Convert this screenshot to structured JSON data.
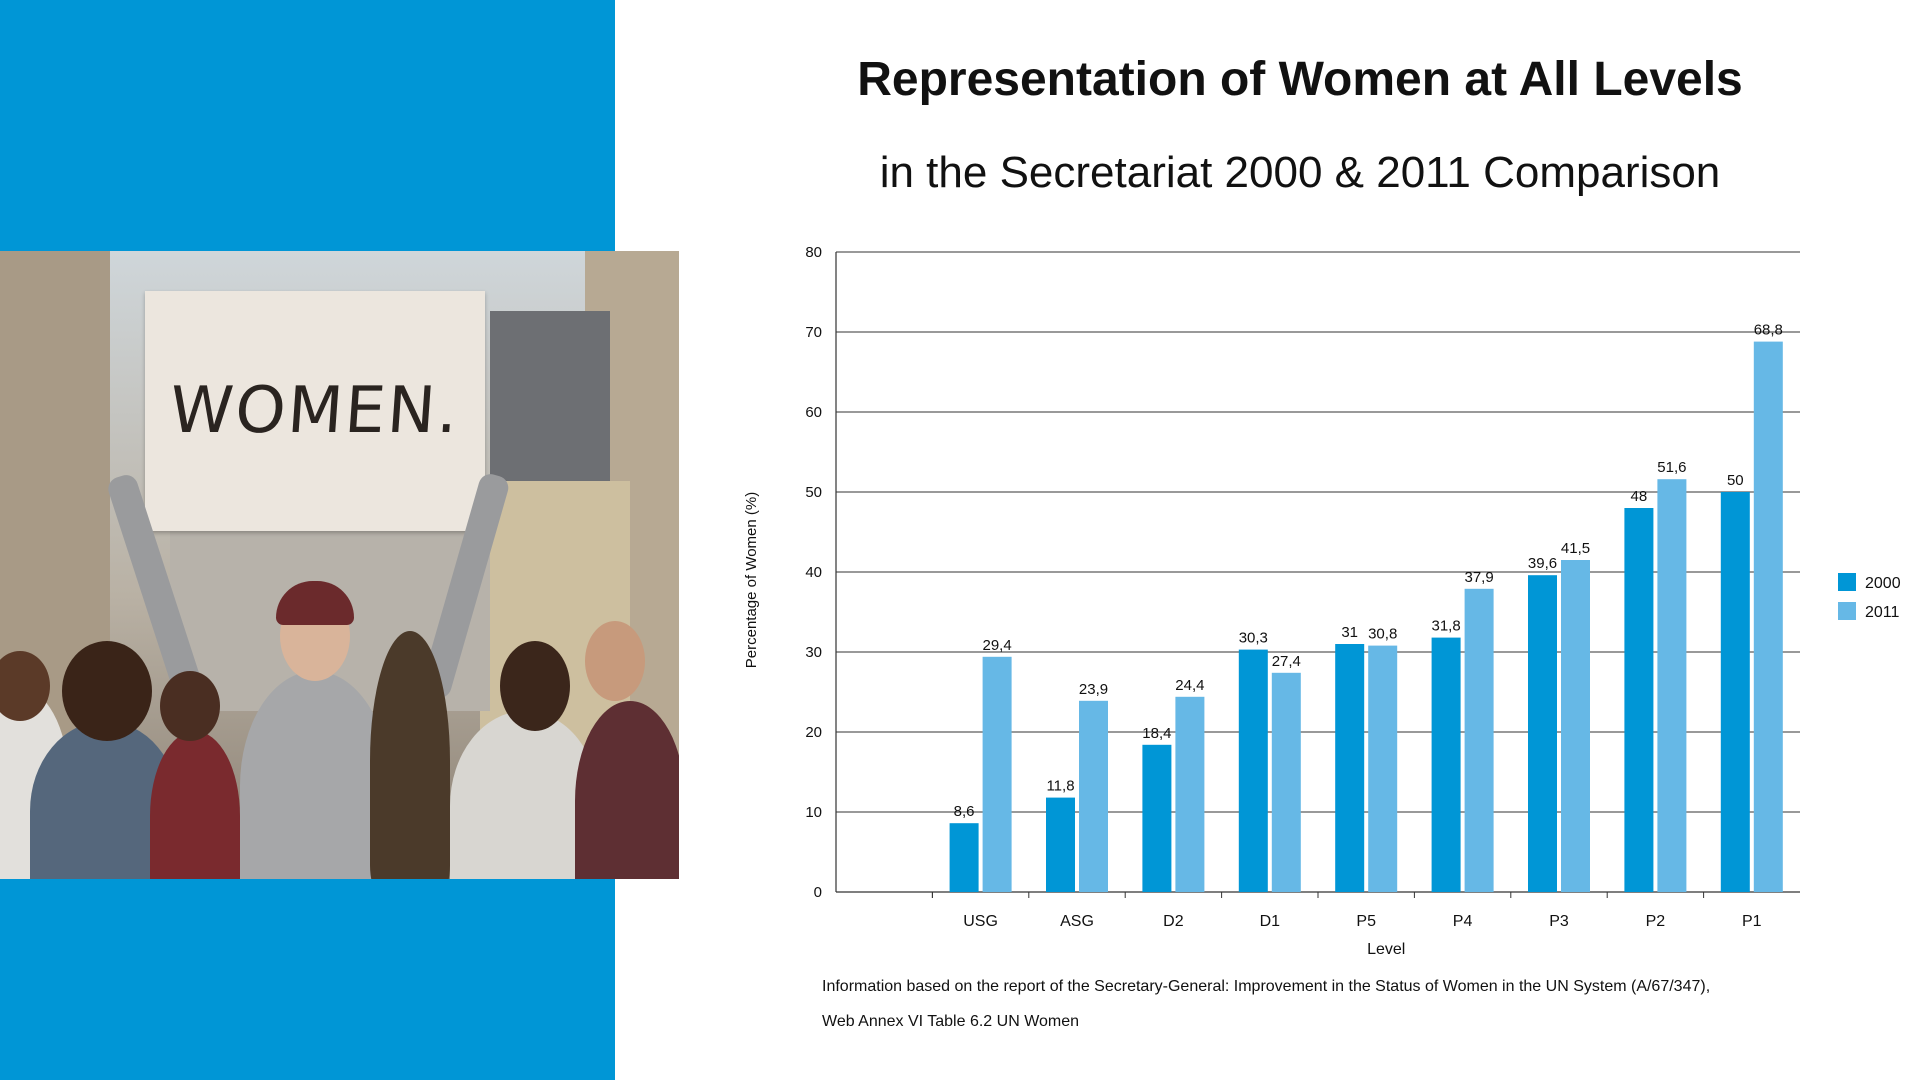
{
  "title": "Representation of Women at All Levels",
  "subtitle": "in the Secretariat 2000 & 2011 Comparison",
  "photo": {
    "sign_text": "WOMEN."
  },
  "colors": {
    "panel": "#0096d6",
    "series_2000": "#0096d6",
    "series_2011": "#66b8e6"
  },
  "chart_data": {
    "type": "bar",
    "categories": [
      "USG",
      "ASG",
      "D2",
      "D1",
      "P5",
      "P4",
      "P3",
      "P2",
      "P1"
    ],
    "series": [
      {
        "name": "2000",
        "values": [
          8.6,
          11.8,
          18.4,
          30.3,
          31,
          31.8,
          39.6,
          48,
          50
        ],
        "labels": [
          "8,6",
          "11,8",
          "18,4",
          "30,3",
          "31",
          "31,8",
          "39,6",
          "48",
          "50"
        ]
      },
      {
        "name": "2011",
        "values": [
          29.4,
          23.9,
          24.4,
          27.4,
          30.8,
          37.9,
          41.5,
          51.6,
          68.8
        ],
        "labels": [
          "29,4",
          "23,9",
          "24,4",
          "27,4",
          "30,8",
          "37,9",
          "41,5",
          "51,6",
          "68,8"
        ]
      }
    ],
    "xlabel": "Level",
    "ylabel": "Percentage of Women (%)",
    "ylim": [
      0,
      80
    ],
    "yticks": [
      0,
      10,
      20,
      30,
      40,
      50,
      60,
      70,
      80
    ],
    "grid": true,
    "legend": "right"
  },
  "notes": [
    "Information based on the report of the Secretary-General: Improvement in the Status of Women in the UN System (A/67/347),",
    "Web Annex VI Table 6.2   UN Women"
  ]
}
